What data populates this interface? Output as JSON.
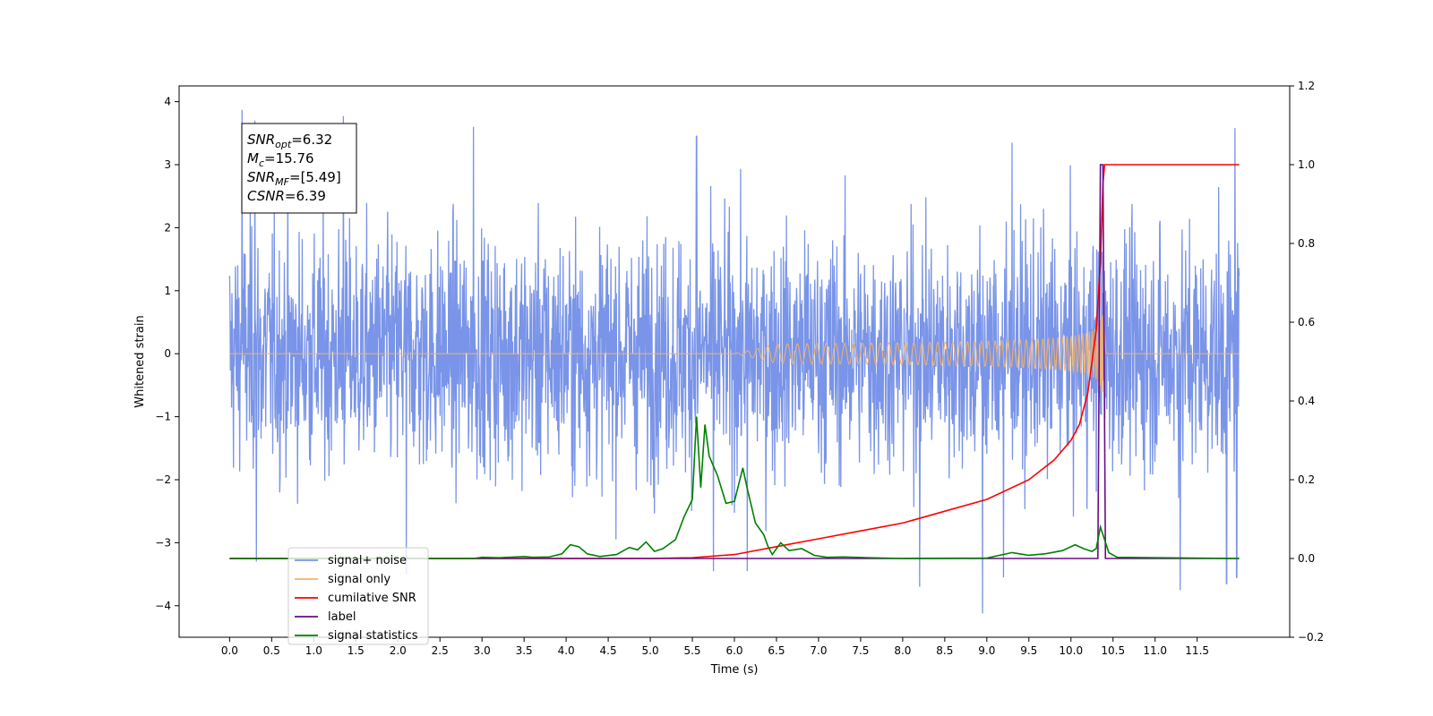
{
  "chart_data": {
    "type": "line",
    "title": "",
    "xlabel": "Time (s)",
    "ylabel": "Whitened strain",
    "y2label": "",
    "xlim": [
      -0.6,
      12.6
    ],
    "ylim": [
      -4.5,
      4.25
    ],
    "y2lim": [
      -0.2,
      1.2
    ],
    "xticks": [
      "0.0",
      "0.5",
      "1.0",
      "1.5",
      "2.0",
      "2.5",
      "3.0",
      "3.5",
      "4.0",
      "4.5",
      "5.0",
      "5.5",
      "6.0",
      "6.5",
      "7.0",
      "7.5",
      "8.0",
      "8.5",
      "9.0",
      "9.5",
      "10.0",
      "10.5",
      "11.0",
      "11.5"
    ],
    "yticks": [
      "4",
      "3",
      "2",
      "1",
      "0",
      "−1",
      "−2",
      "−3",
      "−4"
    ],
    "y2ticks": [
      "1.2",
      "1.0",
      "0.8",
      "0.6",
      "0.4",
      "0.2",
      "0.0",
      "−0.2"
    ],
    "grid": false,
    "legend_position": "bottom-left",
    "annotation": {
      "lines": [
        {
          "name": "SNR",
          "sub": "opt",
          "value": "=6.32"
        },
        {
          "name": "M",
          "sub": "c",
          "value": "=15.76"
        },
        {
          "name": "SNR",
          "sub": "MF",
          "value": "=[5.49]"
        },
        {
          "name": "CSNR",
          "sub": "",
          "value": "=6.39"
        }
      ]
    },
    "series": [
      {
        "name": "signal+ noise",
        "axis": "left",
        "color": "#7994e8",
        "x_range": [
          0,
          12
        ],
        "envelope": {
          "typical_amplitude": 1.5,
          "peak_max": 3.87,
          "peak_min": -4.12
        },
        "spikes": [
          [
            0.15,
            3.87
          ],
          [
            0.3,
            3.7
          ],
          [
            1.35,
            3.77
          ],
          [
            2.9,
            3.6
          ],
          [
            5.55,
            3.45
          ],
          [
            9.3,
            3.35
          ],
          [
            11.95,
            3.58
          ],
          [
            0.32,
            -3.3
          ],
          [
            2.1,
            -3.5
          ],
          [
            5.75,
            -3.45
          ],
          [
            6.15,
            -3.45
          ],
          [
            8.2,
            -3.7
          ],
          [
            8.95,
            -4.12
          ],
          [
            9.2,
            -3.55
          ],
          [
            11.3,
            -3.75
          ],
          [
            11.85,
            -3.65
          ],
          [
            11.97,
            -3.55
          ]
        ]
      },
      {
        "name": "signal only",
        "axis": "left",
        "color": "#f5b266",
        "x_range": [
          0,
          12
        ],
        "chirp": {
          "start": 6.0,
          "merger": 10.38,
          "peak_amplitude": 0.62
        }
      },
      {
        "name": "cumilative SNR",
        "axis": "right",
        "color": "#ff0000",
        "x": [
          0,
          5.0,
          5.5,
          6.0,
          6.5,
          7.0,
          7.5,
          8.0,
          8.5,
          9.0,
          9.5,
          9.8,
          10.0,
          10.1,
          10.2,
          10.3,
          10.35,
          10.38,
          10.4,
          12.0
        ],
        "values": [
          0,
          0,
          0.002,
          0.01,
          0.03,
          0.05,
          0.07,
          0.09,
          0.12,
          0.15,
          0.2,
          0.25,
          0.3,
          0.34,
          0.42,
          0.58,
          0.75,
          0.95,
          1.0,
          1.0
        ]
      },
      {
        "name": "label",
        "axis": "right",
        "color": "#6a0d83",
        "x": [
          0,
          10.32,
          10.35,
          10.38,
          10.41,
          12.0
        ],
        "values": [
          0,
          0,
          1.0,
          1.0,
          0,
          0
        ]
      },
      {
        "name": "signal statistics",
        "axis": "right",
        "color": "#008000",
        "x": [
          0,
          2.9,
          3.0,
          3.2,
          3.4,
          3.5,
          3.6,
          3.8,
          3.95,
          4.05,
          4.15,
          4.25,
          4.4,
          4.6,
          4.75,
          4.85,
          4.95,
          5.05,
          5.15,
          5.3,
          5.4,
          5.5,
          5.55,
          5.6,
          5.65,
          5.7,
          5.8,
          5.9,
          6.0,
          6.1,
          6.15,
          6.25,
          6.35,
          6.4,
          6.45,
          6.55,
          6.65,
          6.8,
          6.95,
          7.1,
          7.3,
          7.6,
          8.0,
          9.0,
          9.3,
          9.5,
          9.7,
          9.9,
          10.05,
          10.15,
          10.25,
          10.3,
          10.35,
          10.45,
          10.55,
          12.0
        ],
        "values": [
          0,
          0,
          0.003,
          0.002,
          0.004,
          0.005,
          0.003,
          0.004,
          0.012,
          0.035,
          0.03,
          0.012,
          0.005,
          0.01,
          0.028,
          0.022,
          0.042,
          0.018,
          0.025,
          0.048,
          0.105,
          0.15,
          0.36,
          0.18,
          0.34,
          0.26,
          0.21,
          0.14,
          0.145,
          0.23,
          0.18,
          0.09,
          0.06,
          0.03,
          0.01,
          0.04,
          0.02,
          0.025,
          0.008,
          0.003,
          0.004,
          0.002,
          0,
          0.001,
          0.015,
          0.008,
          0.012,
          0.02,
          0.035,
          0.025,
          0.018,
          0.025,
          0.08,
          0.015,
          0.003,
          0
        ]
      }
    ]
  }
}
